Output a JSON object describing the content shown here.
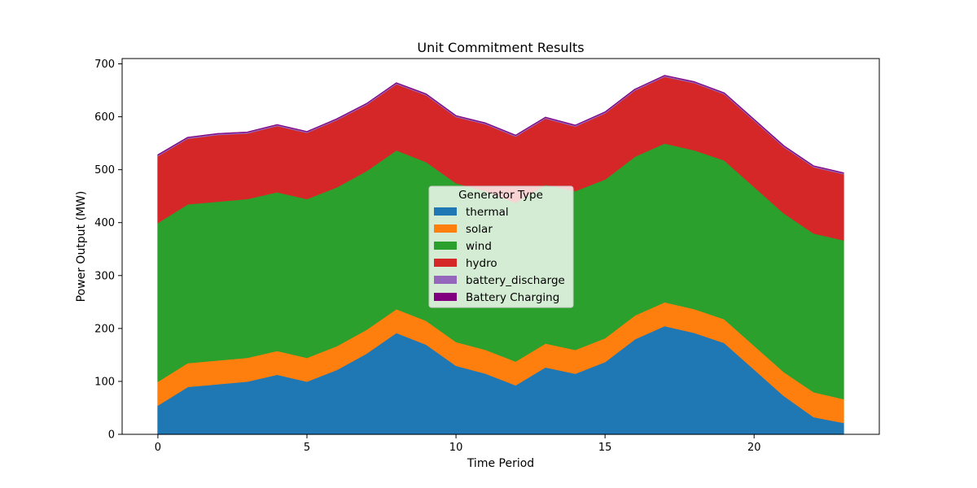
{
  "chart_data": {
    "type": "area",
    "stacked": true,
    "title": "Unit Commitment Results",
    "xlabel": "Time Period",
    "ylabel": "Power Output (MW)",
    "xlim": [
      -1.2,
      24.2
    ],
    "ylim": [
      0,
      710
    ],
    "xticks": [
      0,
      5,
      10,
      15,
      20
    ],
    "yticks": [
      0,
      100,
      200,
      300,
      400,
      500,
      600,
      700
    ],
    "grid": false,
    "x": [
      0,
      1,
      2,
      3,
      4,
      5,
      6,
      7,
      8,
      9,
      10,
      11,
      12,
      13,
      14,
      15,
      16,
      17,
      18,
      19,
      20,
      21,
      22,
      23
    ],
    "legend": {
      "title": "Generator Type",
      "placement": "center"
    },
    "series": [
      {
        "name": "thermal",
        "color": "#1f77b4",
        "values": [
          55,
          90,
          95,
          100,
          113,
          100,
          122,
          153,
          192,
          170,
          130,
          115,
          93,
          127,
          115,
          137,
          180,
          205,
          192,
          173,
          123,
          73,
          33,
          22
        ]
      },
      {
        "name": "solar",
        "color": "#ff7f0e",
        "values": [
          45,
          45,
          45,
          45,
          45,
          45,
          45,
          45,
          45,
          45,
          45,
          45,
          45,
          45,
          45,
          45,
          45,
          45,
          45,
          45,
          45,
          45,
          47,
          45
        ]
      },
      {
        "name": "wind",
        "color": "#2ca02c",
        "values": [
          300,
          300,
          300,
          300,
          300,
          300,
          300,
          300,
          300,
          300,
          300,
          300,
          300,
          300,
          300,
          300,
          300,
          300,
          300,
          300,
          300,
          300,
          300,
          300
        ]
      },
      {
        "name": "hydro",
        "color": "#d62728",
        "values": [
          126,
          124,
          126,
          124,
          125,
          125,
          127,
          125,
          125,
          126,
          125,
          126,
          125,
          125,
          122,
          125,
          125,
          126,
          127,
          125,
          125,
          125,
          125,
          125
        ]
      },
      {
        "name": "battery_discharge",
        "color": "#9467bd",
        "values": [
          2,
          2,
          2,
          2,
          2,
          2,
          2,
          2,
          2,
          2,
          2,
          2,
          2,
          2,
          2,
          2,
          2,
          2,
          2,
          2,
          2,
          2,
          2,
          2
        ]
      },
      {
        "name": "Battery Charging",
        "color": "#800080",
        "values": [
          0,
          0,
          0,
          0,
          0,
          0,
          0,
          0,
          0,
          0,
          0,
          0,
          0,
          0,
          0,
          0,
          0,
          0,
          0,
          0,
          0,
          0,
          0,
          0
        ]
      }
    ]
  }
}
